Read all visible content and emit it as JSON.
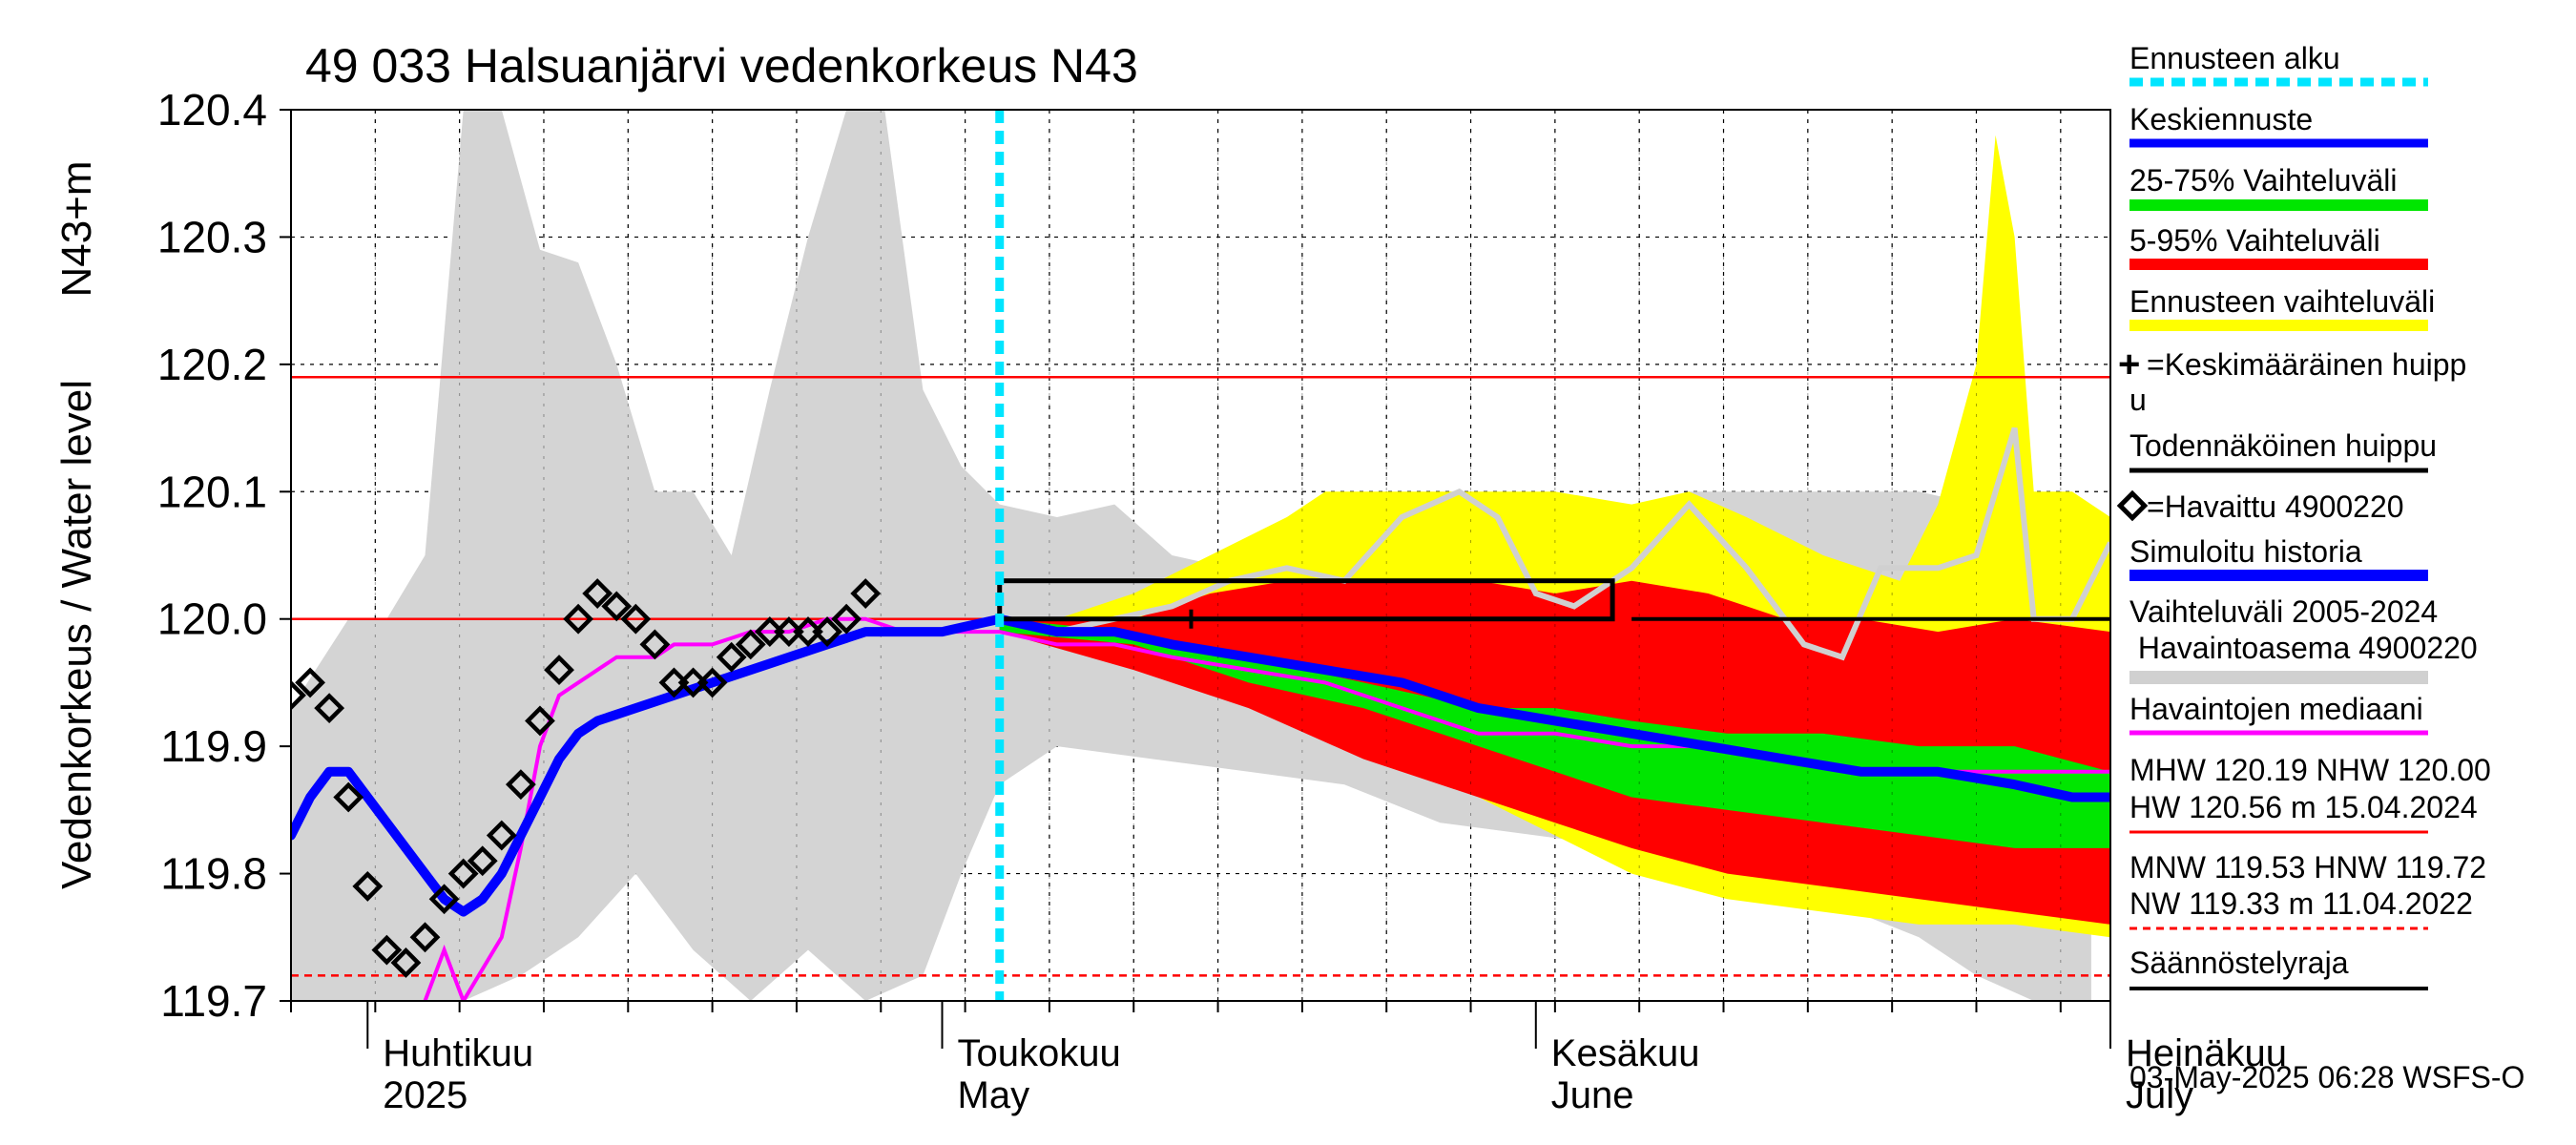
{
  "chart_data": {
    "type": "area",
    "title": "49 033 Halsuanjärvi vedenkorkeus N43",
    "ylabel_1": "Vedenkorkeus / Water level",
    "ylabel_2": "N43+m",
    "ylim": [
      119.7,
      120.4
    ],
    "yticks": [
      "119.7",
      "119.8",
      "119.9",
      "120.0",
      "120.1",
      "120.2",
      "120.3",
      "120.4"
    ],
    "x_range_days": [
      0,
      95
    ],
    "x_start": "2025-03-27",
    "x_end": "2025-07-01",
    "month_labels": [
      {
        "day": 5,
        "fi": "Huhtikuu",
        "en": "2025"
      },
      {
        "day": 35,
        "fi": "Toukokuu",
        "en": "May"
      },
      {
        "day": 66,
        "fi": "Kesäkuu",
        "en": "June"
      },
      {
        "day": 96,
        "fi": "Heinäkuu",
        "en": "July"
      }
    ],
    "forecast_start_day": 37,
    "reference_lines": [
      {
        "name": "MHW",
        "value": 120.19,
        "color": "#ff0000",
        "style": "solid"
      },
      {
        "name": "NHW",
        "value": 120.0,
        "color": "#ff0000",
        "style": "solid"
      },
      {
        "name": "Säännöstelyraja",
        "value": 119.72,
        "color": "#ff0000",
        "style": "dashed"
      }
    ],
    "history_band_upper": [
      [
        0,
        119.93
      ],
      [
        3,
        120.0
      ],
      [
        5,
        120.0
      ],
      [
        7,
        120.05
      ],
      [
        9,
        120.4
      ],
      [
        11,
        120.4
      ],
      [
        13,
        120.29
      ],
      [
        15,
        120.28
      ],
      [
        17,
        120.2
      ],
      [
        19,
        120.1
      ],
      [
        21,
        120.1
      ],
      [
        23,
        120.05
      ],
      [
        25,
        120.18
      ],
      [
        27,
        120.3
      ],
      [
        29,
        120.4
      ],
      [
        31,
        120.4
      ],
      [
        33,
        120.18
      ],
      [
        35,
        120.12
      ],
      [
        37,
        120.09
      ],
      [
        40,
        120.08
      ],
      [
        43,
        120.09
      ],
      [
        46,
        120.05
      ],
      [
        49,
        120.04
      ],
      [
        52,
        120.08
      ],
      [
        55,
        120.08
      ],
      [
        58,
        120.09
      ],
      [
        61,
        120.1
      ],
      [
        64,
        120.06
      ],
      [
        67,
        120.02
      ],
      [
        70,
        120.04
      ],
      [
        73,
        120.1
      ],
      [
        76,
        120.1
      ],
      [
        79,
        120.1
      ],
      [
        82,
        120.1
      ],
      [
        85,
        120.1
      ],
      [
        88,
        120.09
      ],
      [
        91,
        120.1
      ],
      [
        94,
        120.05
      ]
    ],
    "history_band_lower": [
      [
        0,
        119.7
      ],
      [
        5,
        119.7
      ],
      [
        9,
        119.7
      ],
      [
        12,
        119.72
      ],
      [
        15,
        119.75
      ],
      [
        18,
        119.8
      ],
      [
        21,
        119.74
      ],
      [
        24,
        119.7
      ],
      [
        27,
        119.74
      ],
      [
        30,
        119.7
      ],
      [
        33,
        119.72
      ],
      [
        35,
        119.8
      ],
      [
        37,
        119.87
      ],
      [
        40,
        119.9
      ],
      [
        45,
        119.89
      ],
      [
        50,
        119.88
      ],
      [
        55,
        119.87
      ],
      [
        60,
        119.84
      ],
      [
        65,
        119.83
      ],
      [
        70,
        119.82
      ],
      [
        75,
        119.8
      ],
      [
        80,
        119.78
      ],
      [
        85,
        119.75
      ],
      [
        88,
        119.72
      ],
      [
        91,
        119.7
      ],
      [
        94,
        119.7
      ]
    ],
    "forecast_range_upper": [
      [
        37,
        120.0
      ],
      [
        40,
        120.0
      ],
      [
        44,
        120.02
      ],
      [
        48,
        120.05
      ],
      [
        52,
        120.08
      ],
      [
        54,
        120.1
      ],
      [
        58,
        120.1
      ],
      [
        62,
        120.1
      ],
      [
        66,
        120.1
      ],
      [
        70,
        120.09
      ],
      [
        73,
        120.1
      ],
      [
        76,
        120.08
      ],
      [
        80,
        120.05
      ],
      [
        84,
        120.03
      ],
      [
        86,
        120.09
      ],
      [
        88,
        120.2
      ],
      [
        89,
        120.38
      ],
      [
        90,
        120.3
      ],
      [
        91,
        120.1
      ],
      [
        93,
        120.1
      ],
      [
        95,
        120.08
      ]
    ],
    "forecast_range_lower": [
      [
        37,
        119.99
      ],
      [
        44,
        119.97
      ],
      [
        50,
        119.94
      ],
      [
        56,
        119.9
      ],
      [
        62,
        119.86
      ],
      [
        66,
        119.83
      ],
      [
        70,
        119.8
      ],
      [
        75,
        119.78
      ],
      [
        80,
        119.77
      ],
      [
        85,
        119.76
      ],
      [
        90,
        119.76
      ],
      [
        95,
        119.75
      ]
    ],
    "band_5_95_upper": [
      [
        37,
        120.0
      ],
      [
        44,
        120.0
      ],
      [
        48,
        120.02
      ],
      [
        52,
        120.03
      ],
      [
        58,
        120.03
      ],
      [
        62,
        120.03
      ],
      [
        66,
        120.02
      ],
      [
        70,
        120.03
      ],
      [
        74,
        120.02
      ],
      [
        78,
        120.0
      ],
      [
        82,
        120.0
      ],
      [
        86,
        119.99
      ],
      [
        90,
        120.0
      ],
      [
        95,
        119.99
      ]
    ],
    "band_5_95_lower": [
      [
        37,
        119.99
      ],
      [
        44,
        119.96
      ],
      [
        50,
        119.93
      ],
      [
        56,
        119.89
      ],
      [
        62,
        119.86
      ],
      [
        66,
        119.84
      ],
      [
        70,
        119.82
      ],
      [
        75,
        119.8
      ],
      [
        80,
        119.79
      ],
      [
        85,
        119.78
      ],
      [
        90,
        119.77
      ],
      [
        95,
        119.76
      ]
    ],
    "band_25_75_upper": [
      [
        37,
        120.0
      ],
      [
        44,
        119.99
      ],
      [
        50,
        119.97
      ],
      [
        56,
        119.95
      ],
      [
        62,
        119.93
      ],
      [
        66,
        119.93
      ],
      [
        70,
        119.92
      ],
      [
        75,
        119.91
      ],
      [
        80,
        119.91
      ],
      [
        85,
        119.9
      ],
      [
        90,
        119.9
      ],
      [
        95,
        119.88
      ]
    ],
    "band_25_75_lower": [
      [
        37,
        119.99
      ],
      [
        44,
        119.98
      ],
      [
        50,
        119.95
      ],
      [
        56,
        119.93
      ],
      [
        62,
        119.9
      ],
      [
        66,
        119.88
      ],
      [
        70,
        119.86
      ],
      [
        75,
        119.85
      ],
      [
        80,
        119.84
      ],
      [
        85,
        119.83
      ],
      [
        90,
        119.82
      ],
      [
        95,
        119.82
      ]
    ],
    "mean_forecast": [
      [
        0,
        119.83
      ],
      [
        1,
        119.86
      ],
      [
        2,
        119.88
      ],
      [
        3,
        119.88
      ],
      [
        4,
        119.86
      ],
      [
        5,
        119.84
      ],
      [
        6,
        119.82
      ],
      [
        7,
        119.8
      ],
      [
        8,
        119.78
      ],
      [
        9,
        119.77
      ],
      [
        10,
        119.78
      ],
      [
        11,
        119.8
      ],
      [
        12,
        119.83
      ],
      [
        13,
        119.86
      ],
      [
        14,
        119.89
      ],
      [
        15,
        119.91
      ],
      [
        16,
        119.92
      ],
      [
        18,
        119.93
      ],
      [
        20,
        119.94
      ],
      [
        22,
        119.95
      ],
      [
        24,
        119.96
      ],
      [
        26,
        119.97
      ],
      [
        28,
        119.98
      ],
      [
        30,
        119.99
      ],
      [
        32,
        119.99
      ],
      [
        34,
        119.99
      ],
      [
        37,
        120.0
      ],
      [
        40,
        119.99
      ],
      [
        43,
        119.99
      ],
      [
        46,
        119.98
      ],
      [
        50,
        119.97
      ],
      [
        54,
        119.96
      ],
      [
        58,
        119.95
      ],
      [
        62,
        119.93
      ],
      [
        66,
        119.92
      ],
      [
        70,
        119.91
      ],
      [
        74,
        119.9
      ],
      [
        78,
        119.89
      ],
      [
        82,
        119.88
      ],
      [
        86,
        119.88
      ],
      [
        90,
        119.87
      ],
      [
        93,
        119.86
      ],
      [
        95,
        119.86
      ]
    ],
    "observed_median": [
      [
        7,
        119.7
      ],
      [
        8,
        119.74
      ],
      [
        9,
        119.7
      ],
      [
        11,
        119.75
      ],
      [
        12,
        119.82
      ],
      [
        13,
        119.9
      ],
      [
        14,
        119.94
      ],
      [
        15,
        119.95
      ],
      [
        16,
        119.96
      ],
      [
        17,
        119.97
      ],
      [
        18,
        119.97
      ],
      [
        19,
        119.97
      ],
      [
        20,
        119.98
      ],
      [
        21,
        119.98
      ],
      [
        22,
        119.98
      ],
      [
        24,
        119.99
      ],
      [
        26,
        119.99
      ],
      [
        28,
        120.0
      ],
      [
        30,
        120.0
      ],
      [
        32,
        119.99
      ],
      [
        34,
        119.99
      ],
      [
        37,
        119.99
      ],
      [
        40,
        119.98
      ],
      [
        43,
        119.98
      ],
      [
        46,
        119.97
      ],
      [
        50,
        119.96
      ],
      [
        54,
        119.95
      ],
      [
        58,
        119.93
      ],
      [
        62,
        119.91
      ],
      [
        66,
        119.91
      ],
      [
        70,
        119.9
      ],
      [
        74,
        119.9
      ],
      [
        78,
        119.89
      ],
      [
        82,
        119.88
      ],
      [
        86,
        119.88
      ],
      [
        90,
        119.88
      ],
      [
        93,
        119.88
      ],
      [
        95,
        119.88
      ]
    ],
    "simulated_history_grey": [
      [
        37,
        120.0
      ],
      [
        40,
        119.99
      ],
      [
        43,
        120.0
      ],
      [
        46,
        120.01
      ],
      [
        49,
        120.03
      ],
      [
        52,
        120.04
      ],
      [
        55,
        120.03
      ],
      [
        58,
        120.08
      ],
      [
        61,
        120.1
      ],
      [
        63,
        120.08
      ],
      [
        65,
        120.02
      ],
      [
        67,
        120.01
      ],
      [
        70,
        120.04
      ],
      [
        73,
        120.09
      ],
      [
        76,
        120.04
      ],
      [
        79,
        119.98
      ],
      [
        81,
        119.97
      ],
      [
        83,
        120.04
      ],
      [
        86,
        120.04
      ],
      [
        88,
        120.05
      ],
      [
        90,
        120.15
      ],
      [
        91,
        120.0
      ],
      [
        93,
        120.0
      ],
      [
        95,
        120.06
      ]
    ],
    "observations_4900220": [
      [
        0,
        119.94
      ],
      [
        1,
        119.95
      ],
      [
        2,
        119.93
      ],
      [
        3,
        119.86
      ],
      [
        4,
        119.79
      ],
      [
        5,
        119.74
      ],
      [
        6,
        119.73
      ],
      [
        7,
        119.75
      ],
      [
        8,
        119.78
      ],
      [
        9,
        119.8
      ],
      [
        10,
        119.81
      ],
      [
        11,
        119.83
      ],
      [
        12,
        119.87
      ],
      [
        13,
        119.92
      ],
      [
        14,
        119.96
      ],
      [
        15,
        120.0
      ],
      [
        16,
        120.02
      ],
      [
        17,
        120.01
      ],
      [
        18,
        120.0
      ],
      [
        19,
        119.98
      ],
      [
        20,
        119.95
      ],
      [
        21,
        119.95
      ],
      [
        22,
        119.95
      ],
      [
        23,
        119.97
      ],
      [
        24,
        119.98
      ],
      [
        25,
        119.99
      ],
      [
        26,
        119.99
      ],
      [
        27,
        119.99
      ],
      [
        28,
        119.99
      ],
      [
        29,
        120.0
      ],
      [
        30,
        120.02
      ]
    ],
    "mean_peak": {
      "day": 47,
      "value": 120.0
    },
    "probable_peak_box": {
      "day_start": 37,
      "day_end": 69,
      "value_low": 120.0,
      "value_high": 120.03
    },
    "probable_peak_line": {
      "day_start": 70,
      "day_end": 95,
      "value": 120.0
    },
    "colors": {
      "history_band": "#d4d4d4",
      "forecast_range": "#ffff00",
      "band_5_95": "#ff0000",
      "band_25_75": "#00e600",
      "mean_forecast": "#0000ff",
      "observed_median": "#ff00ff",
      "simulated_history_grey": "#d0d0d0",
      "forecast_start": "#00e5ff",
      "reference": "#ff0000"
    },
    "legend": [
      {
        "key": "forecast_start",
        "label": "Ennusteen alku"
      },
      {
        "key": "mean_forecast",
        "label": "Keskiennuste"
      },
      {
        "key": "band_25_75",
        "label": "25-75% Vaihteluväli"
      },
      {
        "key": "band_5_95",
        "label": "5-95% Vaihteluväli"
      },
      {
        "key": "forecast_range",
        "label": "Ennusteen vaihteluväli"
      },
      {
        "key": "mean_peak",
        "label_1": "=Keskimääräinen huipp",
        "label_2": "u"
      },
      {
        "key": "probable_peak",
        "label": "Todennäköinen huippu"
      },
      {
        "key": "observations",
        "label": "=Havaittu 4900220"
      },
      {
        "key": "simulated",
        "label": "Simuloitu historia"
      },
      {
        "key": "history_band",
        "label_1": "Vaihteluväli 2005-2024",
        "label_2": " Havaintoasema 4900220"
      },
      {
        "key": "observed_median",
        "label": "Havaintojen mediaani"
      }
    ],
    "stats": {
      "line1": "MHW 120.19 NHW 120.00",
      "line2": "HW 120.56 m 15.04.2024",
      "line3": "MNW 119.53 HNW 119.72",
      "line4": "NW 119.33 m 11.04.2022",
      "regulation": "Säännöstelyraja"
    },
    "footer": "03-May-2025 06:28 WSFS-O"
  }
}
